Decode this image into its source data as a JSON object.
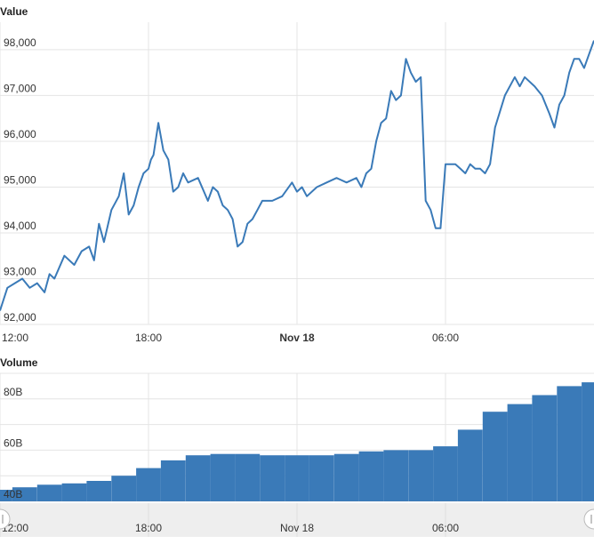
{
  "panels": {
    "price_title": "Value",
    "volume_title": "Volume"
  },
  "colors": {
    "line": "#3a7ab8",
    "bar": "#3a7ab8",
    "grid": "#e4e4e4",
    "navigator_bg": "#eeeeee"
  },
  "chart_data": [
    {
      "type": "line",
      "title": "Value",
      "ylim": [
        92000,
        98600
      ],
      "yticks": [
        92000,
        93000,
        94000,
        95000,
        96000,
        97000,
        98000
      ],
      "ytick_labels": [
        "92,000",
        "93,000",
        "94,000",
        "95,000",
        "96,000",
        "97,000",
        "98,000"
      ],
      "xticks": [
        0,
        6,
        12,
        18
      ],
      "xtick_labels": [
        "12:00",
        "18:00",
        "Nov 18",
        "06:00"
      ],
      "xlim": [
        0,
        24
      ],
      "grid": true,
      "x": [
        0,
        0.3,
        0.6,
        0.9,
        1.2,
        1.5,
        1.8,
        2.0,
        2.2,
        2.6,
        3.0,
        3.3,
        3.6,
        3.8,
        4.0,
        4.2,
        4.5,
        4.8,
        5.0,
        5.2,
        5.4,
        5.6,
        5.8,
        6.0,
        6.1,
        6.2,
        6.4,
        6.6,
        6.8,
        7.0,
        7.2,
        7.4,
        7.6,
        8.0,
        8.4,
        8.6,
        8.8,
        9.0,
        9.2,
        9.4,
        9.6,
        9.8,
        10.0,
        10.2,
        10.4,
        10.6,
        11.0,
        11.4,
        11.8,
        12.0,
        12.2,
        12.4,
        12.8,
        13.2,
        13.6,
        14.0,
        14.4,
        14.6,
        14.8,
        15.0,
        15.2,
        15.4,
        15.6,
        15.8,
        16.0,
        16.2,
        16.4,
        16.6,
        16.8,
        17.0,
        17.2,
        17.4,
        17.6,
        17.8,
        18.0,
        18.2,
        18.4,
        18.6,
        18.8,
        19.0,
        19.2,
        19.4,
        19.6,
        19.8,
        20.0,
        20.4,
        20.8,
        21.0,
        21.2,
        21.6,
        21.9,
        22.2,
        22.4,
        22.6,
        22.8,
        23.0,
        23.2,
        23.4,
        23.6,
        23.8,
        24.0
      ],
      "y": [
        92300,
        92800,
        92900,
        93000,
        92800,
        92900,
        92700,
        93100,
        93000,
        93500,
        93300,
        93600,
        93700,
        93400,
        94200,
        93800,
        94500,
        94800,
        95300,
        94400,
        94600,
        95000,
        95300,
        95400,
        95600,
        95700,
        96400,
        95800,
        95600,
        94900,
        95000,
        95300,
        95100,
        95200,
        94700,
        95000,
        94900,
        94600,
        94500,
        94300,
        93700,
        93800,
        94200,
        94300,
        94500,
        94700,
        94700,
        94800,
        95100,
        94900,
        95000,
        94800,
        95000,
        95100,
        95200,
        95100,
        95200,
        95000,
        95300,
        95400,
        96000,
        96400,
        96500,
        97100,
        96900,
        97000,
        97800,
        97500,
        97300,
        97400,
        94700,
        94500,
        94100,
        94100,
        95500,
        95500,
        95500,
        95400,
        95300,
        95500,
        95400,
        95400,
        95300,
        95500,
        96300,
        97000,
        97400,
        97200,
        97400,
        97200,
        97000,
        96600,
        96300,
        96800,
        97000,
        97500,
        97800,
        97800,
        97600,
        97900,
        98200
      ]
    },
    {
      "type": "bar",
      "title": "Volume",
      "ylim": [
        40,
        90
      ],
      "yticks": [
        40,
        60,
        80
      ],
      "ytick_labels": [
        "40B",
        "60B",
        "80B"
      ],
      "xticks": [
        0,
        6,
        12,
        18
      ],
      "xtick_labels": [
        "12:00",
        "18:00",
        "Nov 18",
        "06:00"
      ],
      "xlim": [
        0,
        24
      ],
      "grid": true,
      "x": [
        0,
        1,
        2,
        3,
        4,
        5,
        6,
        7,
        8,
        9,
        10,
        11,
        12,
        13,
        14,
        15,
        16,
        17,
        18,
        19,
        20,
        21,
        22,
        23,
        24
      ],
      "values": [
        44.5,
        45.5,
        46.5,
        47,
        48,
        50,
        53,
        56,
        58,
        58.5,
        58.5,
        58,
        58,
        58,
        58.5,
        59.5,
        60,
        60,
        61.5,
        68,
        75,
        78,
        81.5,
        85,
        86.5
      ]
    }
  ],
  "navigator": {
    "xtick_labels": [
      "12:00",
      "18:00",
      "Nov 18",
      "06:00"
    ],
    "xticks": [
      0,
      6,
      12,
      18
    ]
  }
}
